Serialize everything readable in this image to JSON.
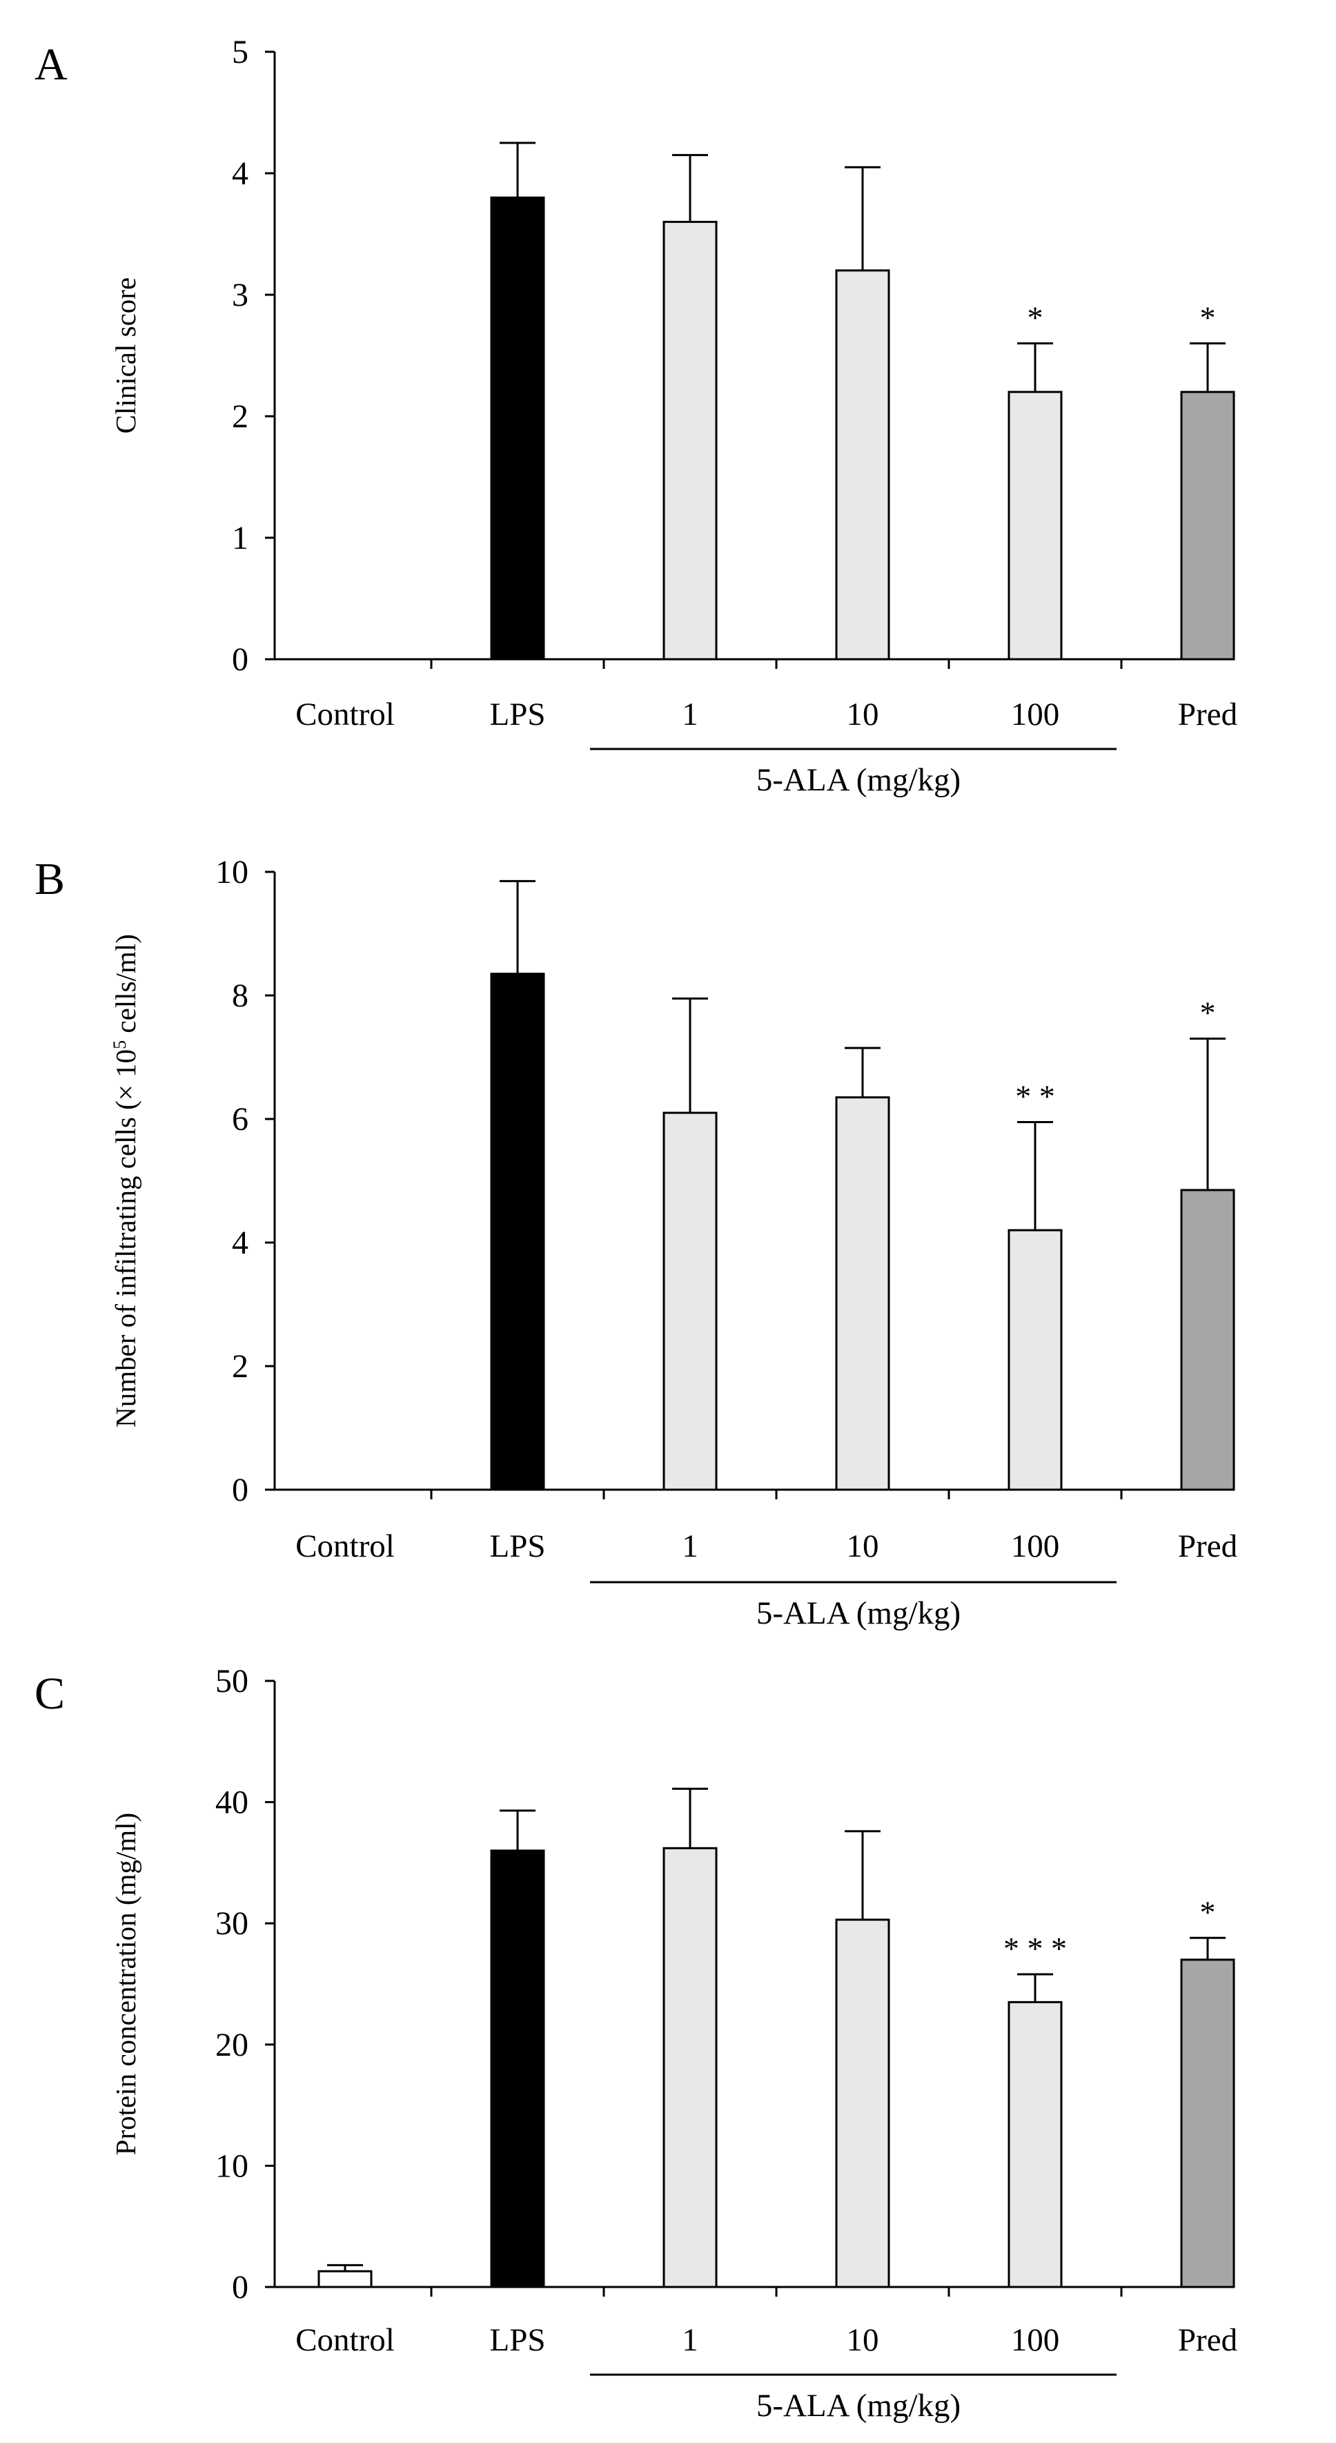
{
  "figure": {
    "group_label": "5-ALA (mg/kg)",
    "bar_colors": {
      "Control": "#ffffff",
      "LPS": "#000000",
      "1": "#e8e8e8",
      "10": "#e8e8e8",
      "100": "#e8e8e8",
      "Pred": "#a6a6a6"
    }
  },
  "chart_data": [
    {
      "panel": "A",
      "type": "bar",
      "title": "",
      "xlabel": "5-ALA (mg/kg)",
      "ylabel": "Clinical score",
      "ylim": [
        0,
        5
      ],
      "yticks": [
        0,
        1,
        2,
        3,
        4,
        5
      ],
      "grid": false,
      "categories": [
        "Control",
        "LPS",
        "1",
        "10",
        "100",
        "Pred"
      ],
      "values": [
        0,
        3.8,
        3.6,
        3.2,
        2.2,
        2.2
      ],
      "errors": [
        0,
        0.45,
        0.55,
        0.85,
        0.4,
        0.4
      ],
      "significance": [
        "",
        "",
        "",
        "",
        "*",
        "*"
      ]
    },
    {
      "panel": "B",
      "type": "bar",
      "title": "",
      "xlabel": "5-ALA (mg/kg)",
      "ylabel_parts": [
        "Number of infiltrating cells (× 10",
        "5",
        " cells/ml)"
      ],
      "ylim": [
        0,
        10
      ],
      "yticks": [
        0,
        2,
        4,
        6,
        8,
        10
      ],
      "grid": false,
      "categories": [
        "Control",
        "LPS",
        "1",
        "10",
        "100",
        "Pred"
      ],
      "values": [
        0,
        8.35,
        6.1,
        6.35,
        4.2,
        4.85
      ],
      "errors": [
        0,
        1.5,
        1.85,
        0.8,
        1.75,
        2.45
      ],
      "significance": [
        "",
        "",
        "",
        "",
        "* *",
        "*"
      ]
    },
    {
      "panel": "C",
      "type": "bar",
      "title": "",
      "xlabel": "5-ALA (mg/kg)",
      "ylabel": "Protein concentration (mg/ml)",
      "ylim": [
        0,
        50
      ],
      "yticks": [
        0,
        10,
        20,
        30,
        40,
        50
      ],
      "grid": false,
      "categories": [
        "Control",
        "LPS",
        "1",
        "10",
        "100",
        "Pred"
      ],
      "values": [
        1.3,
        36,
        36.2,
        30.3,
        23.5,
        27
      ],
      "errors": [
        0.5,
        3.3,
        4.9,
        7.3,
        2.3,
        1.8
      ],
      "significance": [
        "",
        "",
        "",
        "",
        "* * *",
        "*"
      ]
    }
  ]
}
